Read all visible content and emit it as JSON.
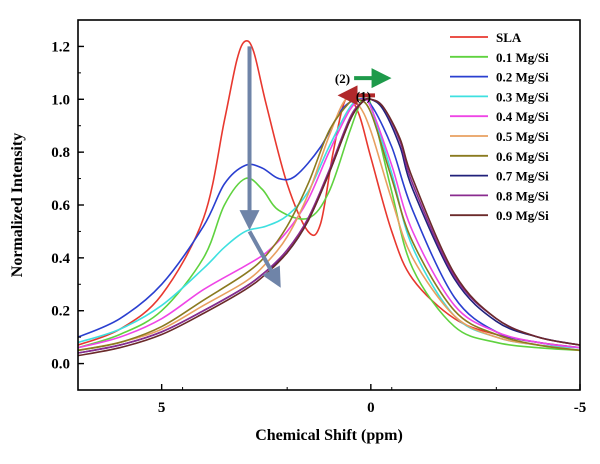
{
  "chart_data": {
    "type": "line",
    "title": "",
    "xlabel": "Chemical Shift (ppm)",
    "ylabel": "Normalized Intensity",
    "xlim": [
      7,
      -5
    ],
    "ylim": [
      -0.1,
      1.3
    ],
    "x_ticks": [
      5,
      0,
      -5
    ],
    "x_tick_labels": [
      "5",
      "0",
      "-5"
    ],
    "y_ticks": [
      0.0,
      0.2,
      0.4,
      0.6,
      0.8,
      1.0,
      1.2
    ],
    "y_tick_labels": [
      "0.0",
      "0.2",
      "0.4",
      "0.6",
      "0.8",
      "1.0",
      "1.2"
    ],
    "grid": false,
    "legend_position": "top-right",
    "series": [
      {
        "name": "SLA",
        "color": "#e8382f",
        "points": [
          [
            7,
            0.07
          ],
          [
            6,
            0.13
          ],
          [
            5,
            0.26
          ],
          [
            4,
            0.55
          ],
          [
            3.5,
            0.92
          ],
          [
            3.2,
            1.15
          ],
          [
            3,
            1.22
          ],
          [
            2.8,
            1.18
          ],
          [
            2.5,
            0.98
          ],
          [
            2,
            0.68
          ],
          [
            1.5,
            0.5
          ],
          [
            1.2,
            0.53
          ],
          [
            0.9,
            0.8
          ],
          [
            0.6,
            1.0
          ],
          [
            0.3,
            0.95
          ],
          [
            0,
            0.78
          ],
          [
            -0.5,
            0.5
          ],
          [
            -1,
            0.32
          ],
          [
            -2,
            0.17
          ],
          [
            -3,
            0.11
          ],
          [
            -4,
            0.08
          ],
          [
            -5,
            0.06
          ]
        ]
      },
      {
        "name": "0.1 Mg/Si",
        "color": "#5fd23f",
        "points": [
          [
            7,
            0.06
          ],
          [
            6,
            0.11
          ],
          [
            5,
            0.2
          ],
          [
            4,
            0.4
          ],
          [
            3.5,
            0.6
          ],
          [
            3,
            0.7
          ],
          [
            2.6,
            0.66
          ],
          [
            2.2,
            0.58
          ],
          [
            1.5,
            0.55
          ],
          [
            1,
            0.65
          ],
          [
            0.5,
            0.88
          ],
          [
            0.2,
            1.0
          ],
          [
            0,
            0.98
          ],
          [
            -0.5,
            0.65
          ],
          [
            -1,
            0.36
          ],
          [
            -2,
            0.14
          ],
          [
            -3,
            0.08
          ],
          [
            -4,
            0.06
          ],
          [
            -5,
            0.05
          ]
        ]
      },
      {
        "name": "0.2 Mg/Si",
        "color": "#2a3fd0",
        "points": [
          [
            7,
            0.1
          ],
          [
            6,
            0.17
          ],
          [
            5,
            0.3
          ],
          [
            4,
            0.52
          ],
          [
            3.5,
            0.68
          ],
          [
            3,
            0.75
          ],
          [
            2.6,
            0.74
          ],
          [
            2.2,
            0.7
          ],
          [
            1.8,
            0.71
          ],
          [
            1.2,
            0.82
          ],
          [
            0.7,
            0.96
          ],
          [
            0.3,
            1.0
          ],
          [
            0,
            0.98
          ],
          [
            -0.5,
            0.82
          ],
          [
            -1,
            0.58
          ],
          [
            -2,
            0.25
          ],
          [
            -3,
            0.12
          ],
          [
            -4,
            0.08
          ],
          [
            -5,
            0.06
          ]
        ]
      },
      {
        "name": "0.3 Mg/Si",
        "color": "#3ee0e0",
        "points": [
          [
            7,
            0.08
          ],
          [
            6,
            0.13
          ],
          [
            5,
            0.22
          ],
          [
            4,
            0.36
          ],
          [
            3.5,
            0.44
          ],
          [
            3,
            0.5
          ],
          [
            2.5,
            0.52
          ],
          [
            2,
            0.56
          ],
          [
            1.5,
            0.65
          ],
          [
            1,
            0.82
          ],
          [
            0.5,
            0.97
          ],
          [
            0.2,
            1.0
          ],
          [
            0,
            0.97
          ],
          [
            -0.5,
            0.72
          ],
          [
            -1,
            0.44
          ],
          [
            -2,
            0.18
          ],
          [
            -3,
            0.1
          ],
          [
            -4,
            0.07
          ],
          [
            -5,
            0.06
          ]
        ]
      },
      {
        "name": "0.4 Mg/Si",
        "color": "#ef45e6",
        "points": [
          [
            7,
            0.06
          ],
          [
            6,
            0.1
          ],
          [
            5,
            0.17
          ],
          [
            4,
            0.28
          ],
          [
            3,
            0.37
          ],
          [
            2.5,
            0.42
          ],
          [
            2,
            0.5
          ],
          [
            1.5,
            0.62
          ],
          [
            1,
            0.8
          ],
          [
            0.5,
            0.96
          ],
          [
            0.2,
            1.0
          ],
          [
            0,
            0.97
          ],
          [
            -0.5,
            0.75
          ],
          [
            -1,
            0.5
          ],
          [
            -2,
            0.22
          ],
          [
            -3,
            0.12
          ],
          [
            -4,
            0.08
          ],
          [
            -5,
            0.06
          ]
        ]
      },
      {
        "name": "0.5 Mg/Si",
        "color": "#e8a060",
        "points": [
          [
            7,
            0.05
          ],
          [
            6,
            0.08
          ],
          [
            5,
            0.13
          ],
          [
            4,
            0.22
          ],
          [
            3,
            0.31
          ],
          [
            2.5,
            0.38
          ],
          [
            2,
            0.48
          ],
          [
            1.5,
            0.64
          ],
          [
            1,
            0.86
          ],
          [
            0.6,
            1.0
          ],
          [
            0.3,
            0.98
          ],
          [
            0,
            0.88
          ],
          [
            -0.5,
            0.62
          ],
          [
            -1,
            0.4
          ],
          [
            -2,
            0.18
          ],
          [
            -3,
            0.1
          ],
          [
            -4,
            0.07
          ],
          [
            -5,
            0.05
          ]
        ]
      },
      {
        "name": "0.6 Mg/Si",
        "color": "#8a7a1f",
        "points": [
          [
            7,
            0.05
          ],
          [
            6,
            0.08
          ],
          [
            5,
            0.14
          ],
          [
            4,
            0.24
          ],
          [
            3,
            0.34
          ],
          [
            2.5,
            0.41
          ],
          [
            2,
            0.52
          ],
          [
            1.5,
            0.68
          ],
          [
            1,
            0.88
          ],
          [
            0.5,
            0.99
          ],
          [
            0.3,
            1.0
          ],
          [
            0,
            0.95
          ],
          [
            -0.5,
            0.7
          ],
          [
            -1,
            0.46
          ],
          [
            -2,
            0.2
          ],
          [
            -3,
            0.11
          ],
          [
            -4,
            0.07
          ],
          [
            -5,
            0.05
          ]
        ]
      },
      {
        "name": "0.7 Mg/Si",
        "color": "#20207a",
        "points": [
          [
            7,
            0.04
          ],
          [
            6,
            0.07
          ],
          [
            5,
            0.12
          ],
          [
            4,
            0.2
          ],
          [
            3,
            0.29
          ],
          [
            2.5,
            0.35
          ],
          [
            2,
            0.42
          ],
          [
            1.5,
            0.54
          ],
          [
            1,
            0.72
          ],
          [
            0.5,
            0.92
          ],
          [
            0.2,
            0.99
          ],
          [
            0,
            1.0
          ],
          [
            -0.3,
            0.96
          ],
          [
            -0.7,
            0.82
          ],
          [
            -1,
            0.66
          ],
          [
            -2,
            0.32
          ],
          [
            -3,
            0.16
          ],
          [
            -4,
            0.1
          ],
          [
            -5,
            0.07
          ]
        ]
      },
      {
        "name": "0.8 Mg/Si",
        "color": "#8a2b8f",
        "points": [
          [
            7,
            0.04
          ],
          [
            6,
            0.07
          ],
          [
            5,
            0.12
          ],
          [
            4,
            0.2
          ],
          [
            3,
            0.29
          ],
          [
            2.5,
            0.35
          ],
          [
            2,
            0.43
          ],
          [
            1.5,
            0.55
          ],
          [
            1,
            0.73
          ],
          [
            0.5,
            0.93
          ],
          [
            0.2,
            0.99
          ],
          [
            0,
            1.0
          ],
          [
            -0.3,
            0.97
          ],
          [
            -0.7,
            0.84
          ],
          [
            -1,
            0.68
          ],
          [
            -2,
            0.33
          ],
          [
            -3,
            0.17
          ],
          [
            -4,
            0.1
          ],
          [
            -5,
            0.07
          ]
        ]
      },
      {
        "name": "0.9 Mg/Si",
        "color": "#6b2a2a",
        "points": [
          [
            7,
            0.03
          ],
          [
            6,
            0.06
          ],
          [
            5,
            0.11
          ],
          [
            4,
            0.19
          ],
          [
            3,
            0.28
          ],
          [
            2.5,
            0.34
          ],
          [
            2,
            0.42
          ],
          [
            1.5,
            0.54
          ],
          [
            1,
            0.72
          ],
          [
            0.5,
            0.92
          ],
          [
            0.2,
            0.99
          ],
          [
            0,
            1.0
          ],
          [
            -0.3,
            0.97
          ],
          [
            -0.7,
            0.85
          ],
          [
            -1,
            0.7
          ],
          [
            -2,
            0.34
          ],
          [
            -3,
            0.17
          ],
          [
            -4,
            0.1
          ],
          [
            -5,
            0.07
          ]
        ]
      }
    ],
    "annotations": [
      {
        "label": "(2)",
        "direction": "right",
        "color": "#1e9a4a",
        "x_from": 0.4,
        "x_to": -0.4,
        "y": 1.08
      },
      {
        "label": "(1)",
        "direction": "left",
        "color": "#b0282a",
        "x_from": -0.1,
        "x_to": 0.7,
        "y": 1.015
      }
    ],
    "arrows": [
      {
        "color": "#6f84a8",
        "x": 2.9,
        "y_from": 1.2,
        "y_to": 0.52
      },
      {
        "color": "#6f84a8",
        "x_from": 2.9,
        "y_from": 0.5,
        "x_to": 2.2,
        "y_to": 0.3
      }
    ]
  }
}
